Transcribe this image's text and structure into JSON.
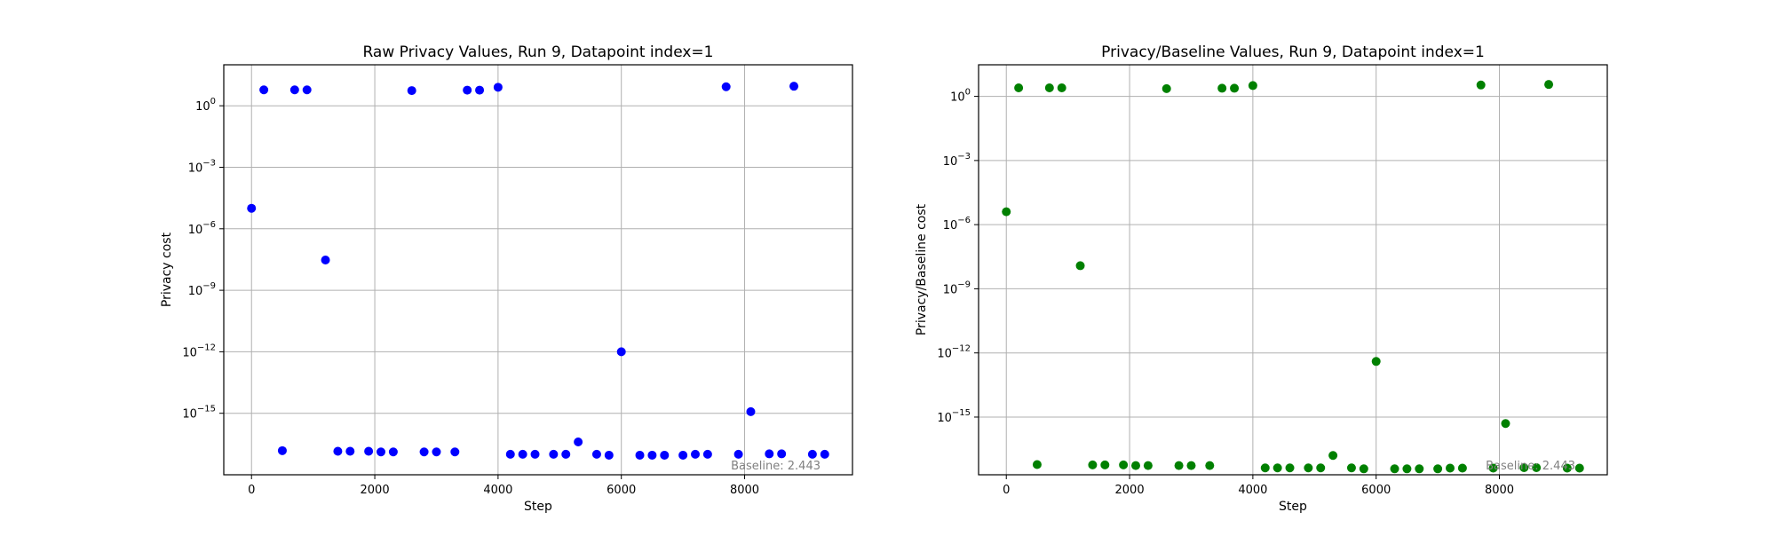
{
  "chart_data": [
    {
      "type": "scatter",
      "title": "Raw Privacy Values, Run 9, Datapoint index=1",
      "xlabel": "Step",
      "ylabel": "Privacy cost",
      "yscale": "log",
      "xlim": [
        -450,
        9750
      ],
      "ylim": [
        1e-18,
        100.0
      ],
      "xticks": [
        0,
        2000,
        4000,
        6000,
        8000
      ],
      "xtick_labels": [
        "0",
        "2000",
        "4000",
        "6000",
        "8000"
      ],
      "yticks": [
        1.0,
        0.001,
        1e-06,
        1e-09,
        1e-12,
        1e-15
      ],
      "ytick_bases": [
        "10",
        "10",
        "10",
        "10",
        "10",
        "10"
      ],
      "ytick_exponents": [
        "0",
        "−3",
        "−6",
        "−9",
        "−12",
        "−15"
      ],
      "grid": true,
      "color": "#0000ff",
      "annotation": "Baseline: 2.443",
      "x": [
        0,
        200,
        500,
        700,
        900,
        1200,
        1400,
        1600,
        1900,
        2100,
        2300,
        2600,
        2800,
        3000,
        3300,
        3500,
        3700,
        4000,
        4200,
        4400,
        4600,
        4900,
        5100,
        5300,
        5600,
        5800,
        6000,
        6300,
        6500,
        6700,
        7000,
        7200,
        7400,
        7700,
        7900,
        8100,
        8400,
        8600,
        8800,
        9100,
        9300
      ],
      "y": [
        1e-05,
        6,
        1.5e-17,
        6,
        6,
        3e-08,
        1.4e-17,
        1.4e-17,
        1.4e-17,
        1.3e-17,
        1.3e-17,
        5.5,
        1.3e-17,
        1.3e-17,
        1.3e-17,
        5.8,
        5.8,
        8,
        1e-17,
        1e-17,
        1e-17,
        1e-17,
        1e-17,
        4e-17,
        1e-17,
        9e-18,
        1e-12,
        9e-18,
        9e-18,
        9e-18,
        9e-18,
        1e-17,
        1e-17,
        8.5,
        1e-17,
        1.2e-15,
        1.05e-17,
        1.05e-17,
        9,
        1e-17,
        1e-17
      ]
    },
    {
      "type": "scatter",
      "title": "Privacy/Baseline Values, Run 9, Datapoint index=1",
      "xlabel": "Step",
      "ylabel": "Privacy/Baseline cost",
      "yscale": "log",
      "xlim": [
        -450,
        9750
      ],
      "ylim": [
        2e-18,
        30
      ],
      "xticks": [
        0,
        2000,
        4000,
        6000,
        8000
      ],
      "xtick_labels": [
        "0",
        "2000",
        "4000",
        "6000",
        "8000"
      ],
      "yticks": [
        1.0,
        0.001,
        1e-06,
        1e-09,
        1e-12,
        1e-15
      ],
      "ytick_bases": [
        "10",
        "10",
        "10",
        "10",
        "10",
        "10"
      ],
      "ytick_exponents": [
        "0",
        "−3",
        "−6",
        "−9",
        "−12",
        "−15"
      ],
      "grid": true,
      "color": "#008000",
      "annotation": "Baseline: 2.443",
      "x": [
        0,
        200,
        500,
        700,
        900,
        1200,
        1400,
        1600,
        1900,
        2100,
        2300,
        2600,
        2800,
        3000,
        3300,
        3500,
        3700,
        4000,
        4200,
        4400,
        4600,
        4900,
        5100,
        5300,
        5600,
        5800,
        6000,
        6300,
        6500,
        6700,
        7000,
        7200,
        7400,
        7700,
        7900,
        8100,
        8400,
        8600,
        8800,
        9100,
        9300
      ],
      "y": [
        4e-06,
        2.5,
        6e-18,
        2.5,
        2.5,
        1.2e-08,
        5.8e-18,
        5.8e-18,
        5.8e-18,
        5.4e-18,
        5.4e-18,
        2.3,
        5.4e-18,
        5.4e-18,
        5.4e-18,
        2.4,
        2.4,
        3.2,
        4.2e-18,
        4.2e-18,
        4.2e-18,
        4.2e-18,
        4.2e-18,
        1.6e-17,
        4.2e-18,
        3.8e-18,
        4e-13,
        3.8e-18,
        3.8e-18,
        3.8e-18,
        3.8e-18,
        4.1e-18,
        4.1e-18,
        3.4,
        4.1e-18,
        5e-16,
        4.3e-18,
        4.3e-18,
        3.6,
        4.1e-18,
        4.1e-18
      ]
    }
  ]
}
